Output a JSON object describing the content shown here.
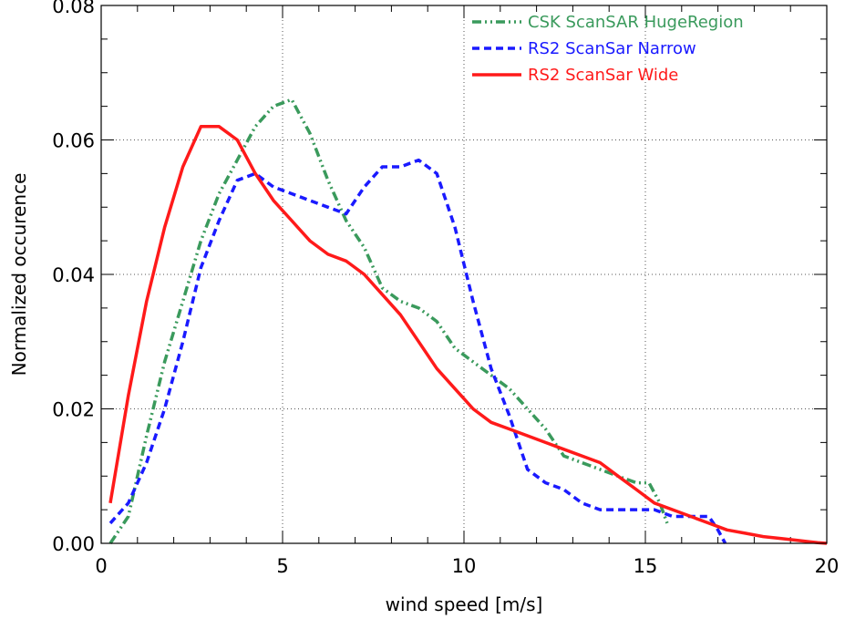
{
  "chart_data": {
    "type": "line",
    "xlabel": "wind speed [m/s]",
    "ylabel": "Normalized occurence",
    "xlim": [
      0,
      20
    ],
    "ylim": [
      0,
      0.08
    ],
    "x_ticks": [
      0,
      5,
      10,
      15,
      20
    ],
    "x_tick_labels": [
      "0",
      "5",
      "10",
      "15",
      "20"
    ],
    "y_ticks": [
      0,
      0.02,
      0.04,
      0.06,
      0.08
    ],
    "y_tick_labels": [
      "0.00",
      "0.02",
      "0.04",
      "0.06",
      "0.08"
    ],
    "grid": "dotted, major ticks",
    "legend_position": "top-right",
    "series": [
      {
        "name": "CSK ScanSAR HugeRegion",
        "color": "#3a9a5c",
        "style": "dash-dot-dot",
        "points": [
          [
            0.25,
            0.0
          ],
          [
            0.75,
            0.004
          ],
          [
            1.25,
            0.016
          ],
          [
            1.75,
            0.027
          ],
          [
            2.25,
            0.036
          ],
          [
            2.75,
            0.045
          ],
          [
            3.25,
            0.052
          ],
          [
            3.75,
            0.057
          ],
          [
            4.25,
            0.062
          ],
          [
            4.75,
            0.065
          ],
          [
            5.25,
            0.066
          ],
          [
            5.75,
            0.061
          ],
          [
            6.25,
            0.054
          ],
          [
            6.75,
            0.048
          ],
          [
            7.25,
            0.044
          ],
          [
            7.75,
            0.038
          ],
          [
            8.25,
            0.036
          ],
          [
            8.75,
            0.035
          ],
          [
            9.25,
            0.033
          ],
          [
            9.75,
            0.029
          ],
          [
            10.25,
            0.027
          ],
          [
            10.75,
            0.025
          ],
          [
            11.25,
            0.023
          ],
          [
            11.75,
            0.02
          ],
          [
            12.25,
            0.017
          ],
          [
            12.75,
            0.013
          ],
          [
            13.25,
            0.012
          ],
          [
            13.75,
            0.011
          ],
          [
            14.25,
            0.01
          ],
          [
            14.75,
            0.009
          ],
          [
            15.1,
            0.009
          ],
          [
            15.4,
            0.006
          ],
          [
            15.6,
            0.003
          ]
        ]
      },
      {
        "name": "RS2 ScanSar Narrow",
        "color": "#1a1aff",
        "style": "dashed",
        "points": [
          [
            0.25,
            0.003
          ],
          [
            0.75,
            0.006
          ],
          [
            1.25,
            0.012
          ],
          [
            1.75,
            0.02
          ],
          [
            2.25,
            0.03
          ],
          [
            2.75,
            0.041
          ],
          [
            3.25,
            0.048
          ],
          [
            3.75,
            0.054
          ],
          [
            4.25,
            0.055
          ],
          [
            4.75,
            0.053
          ],
          [
            5.25,
            0.052
          ],
          [
            5.75,
            0.051
          ],
          [
            6.25,
            0.05
          ],
          [
            6.75,
            0.049
          ],
          [
            7.25,
            0.053
          ],
          [
            7.75,
            0.056
          ],
          [
            8.25,
            0.056
          ],
          [
            8.75,
            0.057
          ],
          [
            9.25,
            0.055
          ],
          [
            9.75,
            0.047
          ],
          [
            10.25,
            0.036
          ],
          [
            10.75,
            0.026
          ],
          [
            11.25,
            0.019
          ],
          [
            11.75,
            0.011
          ],
          [
            12.25,
            0.009
          ],
          [
            12.75,
            0.008
          ],
          [
            13.25,
            0.006
          ],
          [
            13.75,
            0.005
          ],
          [
            14.25,
            0.005
          ],
          [
            14.75,
            0.005
          ],
          [
            15.25,
            0.005
          ],
          [
            15.75,
            0.004
          ],
          [
            16.25,
            0.004
          ],
          [
            16.75,
            0.004
          ],
          [
            17.0,
            0.002
          ],
          [
            17.2,
            0.0
          ]
        ]
      },
      {
        "name": "RS2 ScanSar Wide",
        "color": "#ff1a1a",
        "style": "solid",
        "points": [
          [
            0.25,
            0.006
          ],
          [
            0.75,
            0.022
          ],
          [
            1.25,
            0.036
          ],
          [
            1.75,
            0.047
          ],
          [
            2.25,
            0.056
          ],
          [
            2.75,
            0.062
          ],
          [
            3.25,
            0.062
          ],
          [
            3.75,
            0.06
          ],
          [
            4.25,
            0.055
          ],
          [
            4.75,
            0.051
          ],
          [
            5.25,
            0.048
          ],
          [
            5.75,
            0.045
          ],
          [
            6.25,
            0.043
          ],
          [
            6.75,
            0.042
          ],
          [
            7.25,
            0.04
          ],
          [
            7.75,
            0.037
          ],
          [
            8.25,
            0.034
          ],
          [
            8.75,
            0.03
          ],
          [
            9.25,
            0.026
          ],
          [
            9.75,
            0.023
          ],
          [
            10.25,
            0.02
          ],
          [
            10.75,
            0.018
          ],
          [
            11.25,
            0.017
          ],
          [
            11.75,
            0.016
          ],
          [
            12.25,
            0.015
          ],
          [
            12.75,
            0.014
          ],
          [
            13.25,
            0.013
          ],
          [
            13.75,
            0.012
          ],
          [
            14.25,
            0.01
          ],
          [
            14.75,
            0.008
          ],
          [
            15.25,
            0.006
          ],
          [
            15.75,
            0.005
          ],
          [
            16.25,
            0.004
          ],
          [
            16.75,
            0.003
          ],
          [
            17.25,
            0.002
          ],
          [
            17.75,
            0.0015
          ],
          [
            18.25,
            0.001
          ],
          [
            18.75,
            0.0007
          ],
          [
            19.25,
            0.0004
          ],
          [
            19.75,
            0.0001
          ],
          [
            20.0,
            0.0
          ]
        ]
      }
    ]
  }
}
